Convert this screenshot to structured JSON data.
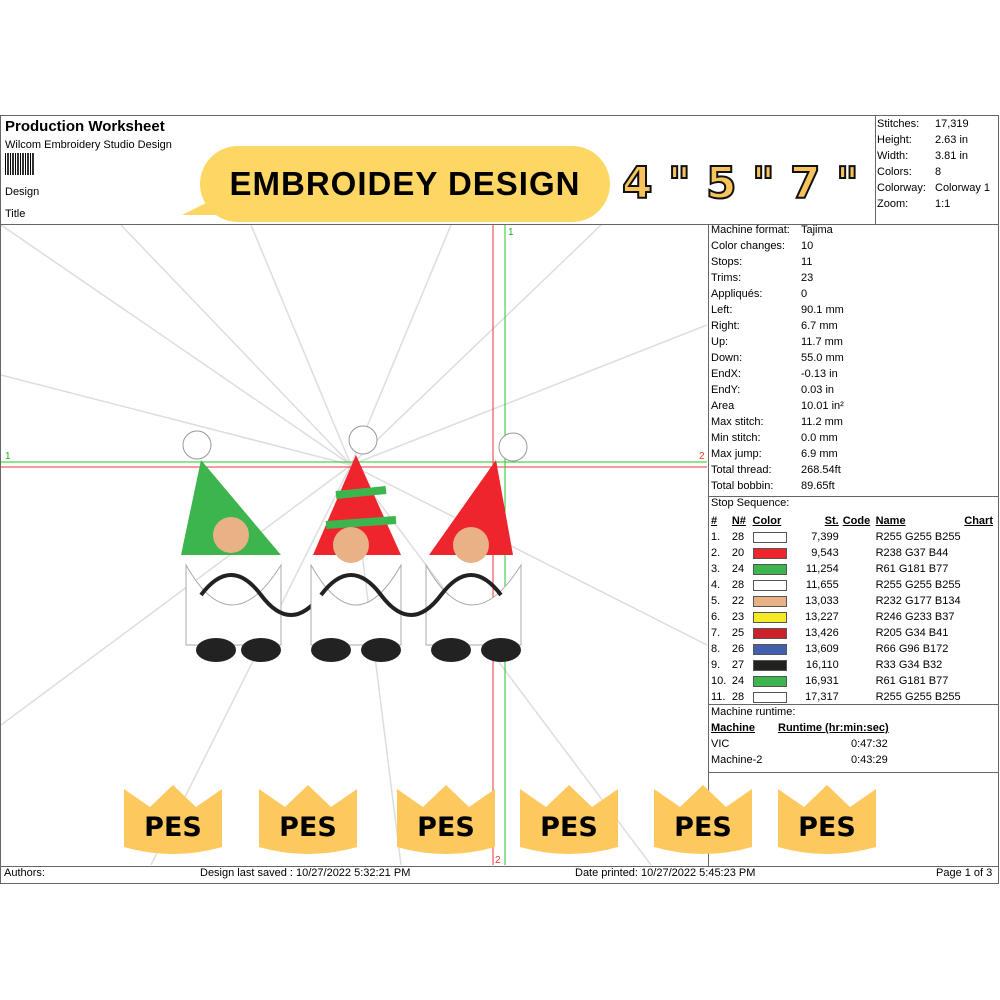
{
  "header": {
    "title": "Production Worksheet",
    "software": "Wilcom Embroidery Studio Design",
    "design_label": "Design",
    "title_label": "Title"
  },
  "overlay": {
    "bubble": "EMBROIDEY DESIGN",
    "sizes": [
      "4 \"",
      "5 \"",
      "7 \""
    ],
    "badges": [
      "PES",
      "PES",
      "PES",
      "PES",
      "PES",
      "PES"
    ],
    "badge_color": "#fdc95f",
    "bubble_color": "#fdd663"
  },
  "summary": [
    {
      "k": "Stitches:",
      "v": "17,319"
    },
    {
      "k": "Height:",
      "v": "2.63 in"
    },
    {
      "k": "Width:",
      "v": "3.81 in"
    },
    {
      "k": "Colors:",
      "v": "8"
    },
    {
      "k": "Colorway:",
      "v": "Colorway 1"
    },
    {
      "k": "Zoom:",
      "v": "1:1"
    }
  ],
  "details": [
    {
      "k": "Machine format:",
      "v": "Tajima"
    },
    {
      "k": "Color changes:",
      "v": "10"
    },
    {
      "k": "Stops:",
      "v": "11"
    },
    {
      "k": "Trims:",
      "v": "23"
    },
    {
      "k": "Appliqués:",
      "v": "0"
    },
    {
      "k": "Left:",
      "v": "90.1 mm"
    },
    {
      "k": "Right:",
      "v": "6.7 mm"
    },
    {
      "k": "Up:",
      "v": "11.7 mm"
    },
    {
      "k": "Down:",
      "v": "55.0 mm"
    },
    {
      "k": "EndX:",
      "v": "-0.13 in"
    },
    {
      "k": "EndY:",
      "v": "0.03 in"
    },
    {
      "k": "Area",
      "v": "10.01 in²"
    },
    {
      "k": "Max stitch:",
      "v": "11.2 mm"
    },
    {
      "k": "Min stitch:",
      "v": "0.0 mm"
    },
    {
      "k": "Max jump:",
      "v": "6.9 mm"
    },
    {
      "k": "Total thread:",
      "v": "268.54ft"
    },
    {
      "k": "Total bobbin:",
      "v": "89.65ft"
    }
  ],
  "stop_sequence": {
    "label": "Stop Sequence:",
    "headers": [
      "#",
      "N#",
      "Color",
      "St.",
      "Code",
      "Name",
      "Chart"
    ],
    "rows": [
      {
        "n": "1.",
        "needle": "28",
        "color": "#ffffff",
        "st": "7,399",
        "name": "R255 G255 B255"
      },
      {
        "n": "2.",
        "needle": "20",
        "color": "#ee252c",
        "st": "9,543",
        "name": "R238 G37 B44"
      },
      {
        "n": "3.",
        "needle": "24",
        "color": "#3db54d",
        "st": "11,254",
        "name": "R61 G181 B77"
      },
      {
        "n": "4.",
        "needle": "28",
        "color": "#ffffff",
        "st": "11,655",
        "name": "R255 G255 B255"
      },
      {
        "n": "5.",
        "needle": "22",
        "color": "#e8b186",
        "st": "13,033",
        "name": "R232 G177 B134"
      },
      {
        "n": "6.",
        "needle": "23",
        "color": "#f6e925",
        "st": "13,227",
        "name": "R246 G233 B37"
      },
      {
        "n": "7.",
        "needle": "25",
        "color": "#cd2229",
        "st": "13,426",
        "name": "R205 G34 B41"
      },
      {
        "n": "8.",
        "needle": "26",
        "color": "#4260ac",
        "st": "13,609",
        "name": "R66 G96 B172"
      },
      {
        "n": "9.",
        "needle": "27",
        "color": "#212220",
        "st": "16,110",
        "name": "R33 G34 B32"
      },
      {
        "n": "10.",
        "needle": "24",
        "color": "#3db54d",
        "st": "16,931",
        "name": "R61 G181 B77"
      },
      {
        "n": "11.",
        "needle": "28",
        "color": "#ffffff",
        "st": "17,317",
        "name": "R255 G255 B255"
      }
    ]
  },
  "runtime": {
    "label": "Machine runtime:",
    "headers": [
      "Machine",
      "Runtime (hr:min:sec)"
    ],
    "rows": [
      {
        "m": "VIC",
        "t": "0:47:32"
      },
      {
        "m": "Machine-2",
        "t": "0:43:29"
      }
    ]
  },
  "guides": {
    "h_left": "1",
    "h_right": "2",
    "v_top": "1",
    "v_bottom": "2"
  },
  "footer": {
    "authors": "Authors:",
    "saved": "Design last saved : 10/27/2022 5:32:21 PM",
    "printed": "Date printed: 10/27/2022 5:45:23 PM",
    "page": "Page 1 of 3"
  }
}
